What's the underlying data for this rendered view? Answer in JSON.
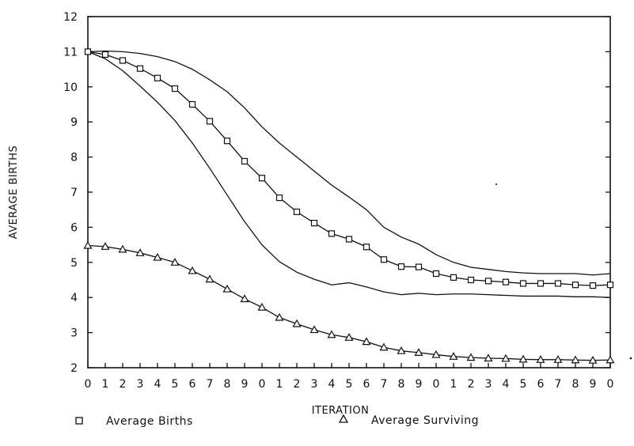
{
  "chart_data": {
    "type": "line",
    "title": "",
    "xlabel": "ITERATION",
    "ylabel": "AVERAGE BIRTHS",
    "x_tick_labels": [
      "0",
      "1",
      "2",
      "3",
      "4",
      "5",
      "6",
      "7",
      "8",
      "9",
      "0",
      "1",
      "2",
      "3",
      "4",
      "5",
      "6",
      "7",
      "8",
      "9",
      "0",
      "1",
      "2",
      "3",
      "4",
      "5",
      "6",
      "7",
      "8",
      "9",
      "0"
    ],
    "x": [
      0,
      1,
      2,
      3,
      4,
      5,
      6,
      7,
      8,
      9,
      10,
      11,
      12,
      13,
      14,
      15,
      16,
      17,
      18,
      19,
      20,
      21,
      22,
      23,
      24,
      25,
      26,
      27,
      28,
      29,
      30
    ],
    "xlim": [
      0,
      30
    ],
    "ylim": [
      2,
      12
    ],
    "y_ticks": [
      2,
      3,
      4,
      5,
      6,
      7,
      8,
      9,
      10,
      11,
      12
    ],
    "grid": false,
    "legend_position": "bottom",
    "series": [
      {
        "name": "Average Births",
        "marker": "square",
        "values": [
          11.0,
          10.92,
          10.75,
          10.52,
          10.25,
          9.95,
          9.5,
          9.02,
          8.46,
          7.88,
          7.4,
          6.84,
          6.44,
          6.12,
          5.82,
          5.66,
          5.44,
          5.08,
          4.88,
          4.87,
          4.68,
          4.57,
          4.5,
          4.47,
          4.44,
          4.4,
          4.4,
          4.4,
          4.36,
          4.34,
          4.36
        ]
      },
      {
        "name": "Average Surviving",
        "marker": "triangle",
        "values": [
          5.48,
          5.45,
          5.37,
          5.27,
          5.14,
          5.0,
          4.76,
          4.52,
          4.24,
          3.96,
          3.72,
          3.43,
          3.25,
          3.08,
          2.94,
          2.86,
          2.74,
          2.58,
          2.48,
          2.43,
          2.37,
          2.32,
          2.29,
          2.27,
          2.26,
          2.24,
          2.23,
          2.23,
          2.22,
          2.21,
          2.22
        ]
      },
      {
        "role": "upper-band",
        "values": [
          11.0,
          11.02,
          11.0,
          10.95,
          10.86,
          10.72,
          10.5,
          10.2,
          9.86,
          9.4,
          8.86,
          8.4,
          8.0,
          7.6,
          7.2,
          6.86,
          6.5,
          6.0,
          5.72,
          5.52,
          5.22,
          5.0,
          4.86,
          4.8,
          4.74,
          4.7,
          4.68,
          4.68,
          4.68,
          4.64,
          4.68
        ]
      },
      {
        "role": "lower-band",
        "values": [
          11.0,
          10.8,
          10.46,
          10.02,
          9.56,
          9.04,
          8.4,
          7.68,
          6.92,
          6.16,
          5.5,
          5.02,
          4.72,
          4.52,
          4.36,
          4.42,
          4.3,
          4.16,
          4.08,
          4.12,
          4.08,
          4.1,
          4.1,
          4.08,
          4.06,
          4.04,
          4.04,
          4.04,
          4.02,
          4.02,
          4.0
        ]
      }
    ]
  }
}
